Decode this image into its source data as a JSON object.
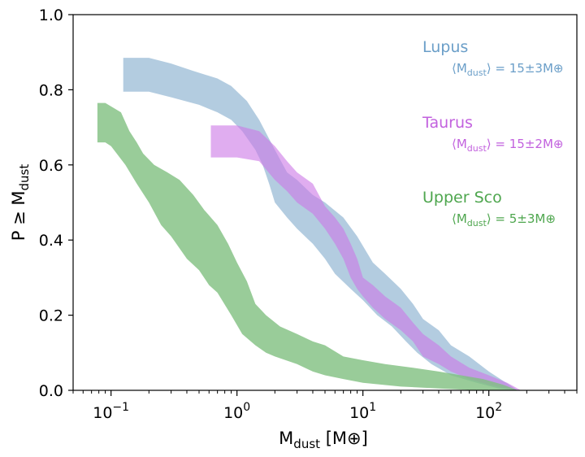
{
  "chart_data": {
    "type": "area",
    "xscale": "log",
    "xlim": [
      0.05,
      500
    ],
    "ylim": [
      0.0,
      1.0
    ],
    "xlabel": {
      "main": "M",
      "sub": "dust",
      "unit": " [M⊕]"
    },
    "ylabel": {
      "main": "P ≥ M",
      "sub": "dust"
    },
    "xticks": [
      {
        "value": 0.1,
        "base": "10",
        "exp": "−1"
      },
      {
        "value": 1,
        "base": "10",
        "exp": "0"
      },
      {
        "value": 10,
        "base": "10",
        "exp": "1"
      },
      {
        "value": 100,
        "base": "10",
        "exp": "2"
      }
    ],
    "yticks": [
      "0.0",
      "0.2",
      "0.4",
      "0.6",
      "0.8",
      "1.0"
    ],
    "grid": false,
    "series": [
      {
        "name": "Lupus",
        "mean_text": "⟨M",
        "mean_sub": "dust",
        "mean_value": "⟩ = 15±3M⊕",
        "color": "#a0bfd8",
        "label_color": "#6a9ec8",
        "upper": [
          [
            0.125,
            0.885
          ],
          [
            0.2,
            0.885
          ],
          [
            0.3,
            0.87
          ],
          [
            0.45,
            0.85
          ],
          [
            0.7,
            0.83
          ],
          [
            0.9,
            0.81
          ],
          [
            1.2,
            0.77
          ],
          [
            1.5,
            0.72
          ],
          [
            2.0,
            0.64
          ],
          [
            2.5,
            0.58
          ],
          [
            3.0,
            0.56
          ],
          [
            4.0,
            0.52
          ],
          [
            5.0,
            0.5
          ],
          [
            7.0,
            0.46
          ],
          [
            9.0,
            0.41
          ],
          [
            12.0,
            0.34
          ],
          [
            15.0,
            0.31
          ],
          [
            20.0,
            0.27
          ],
          [
            25.0,
            0.23
          ],
          [
            30.0,
            0.19
          ],
          [
            40.0,
            0.16
          ],
          [
            50.0,
            0.12
          ],
          [
            70.0,
            0.09
          ],
          [
            100.0,
            0.05
          ],
          [
            130.0,
            0.025
          ],
          [
            170.0,
            0.0
          ]
        ],
        "lower": [
          [
            0.125,
            0.795
          ],
          [
            0.2,
            0.795
          ],
          [
            0.3,
            0.78
          ],
          [
            0.5,
            0.76
          ],
          [
            0.7,
            0.74
          ],
          [
            0.9,
            0.72
          ],
          [
            1.1,
            0.69
          ],
          [
            1.4,
            0.64
          ],
          [
            1.6,
            0.6
          ],
          [
            1.8,
            0.55
          ],
          [
            2.0,
            0.5
          ],
          [
            2.5,
            0.46
          ],
          [
            3.0,
            0.43
          ],
          [
            4.0,
            0.39
          ],
          [
            5.0,
            0.35
          ],
          [
            6.0,
            0.31
          ],
          [
            8.0,
            0.27
          ],
          [
            10.0,
            0.24
          ],
          [
            13.0,
            0.2
          ],
          [
            17.0,
            0.17
          ],
          [
            22.0,
            0.13
          ],
          [
            27.0,
            0.1
          ],
          [
            35.0,
            0.07
          ],
          [
            50.0,
            0.04
          ],
          [
            80.0,
            0.02
          ],
          [
            120.0,
            0.005
          ],
          [
            170.0,
            0.0
          ]
        ]
      },
      {
        "name": "Taurus",
        "mean_text": "⟨M",
        "mean_sub": "dust",
        "mean_value": "⟩ = 15±2M⊕",
        "color": "#cc77e6",
        "label_color": "#c261de",
        "upper": [
          [
            0.62,
            0.705
          ],
          [
            1.0,
            0.705
          ],
          [
            1.5,
            0.69
          ],
          [
            2.0,
            0.65
          ],
          [
            2.5,
            0.61
          ],
          [
            3.0,
            0.58
          ],
          [
            4.0,
            0.55
          ],
          [
            5.0,
            0.49
          ],
          [
            6.0,
            0.46
          ],
          [
            7.0,
            0.43
          ],
          [
            8.0,
            0.39
          ],
          [
            9.0,
            0.35
          ],
          [
            10.0,
            0.3
          ],
          [
            12.0,
            0.28
          ],
          [
            15.0,
            0.25
          ],
          [
            20.0,
            0.22
          ],
          [
            25.0,
            0.18
          ],
          [
            30.0,
            0.15
          ],
          [
            40.0,
            0.12
          ],
          [
            50.0,
            0.09
          ],
          [
            70.0,
            0.06
          ],
          [
            100.0,
            0.04
          ],
          [
            140.0,
            0.02
          ],
          [
            180.0,
            0.0
          ]
        ],
        "lower": [
          [
            0.62,
            0.62
          ],
          [
            1.0,
            0.62
          ],
          [
            1.5,
            0.61
          ],
          [
            2.0,
            0.56
          ],
          [
            2.5,
            0.53
          ],
          [
            3.0,
            0.5
          ],
          [
            4.0,
            0.47
          ],
          [
            5.0,
            0.43
          ],
          [
            6.0,
            0.39
          ],
          [
            7.0,
            0.35
          ],
          [
            8.0,
            0.3
          ],
          [
            9.0,
            0.27
          ],
          [
            10.0,
            0.25
          ],
          [
            12.0,
            0.22
          ],
          [
            15.0,
            0.19
          ],
          [
            20.0,
            0.16
          ],
          [
            25.0,
            0.13
          ],
          [
            30.0,
            0.09
          ],
          [
            40.0,
            0.07
          ],
          [
            50.0,
            0.05
          ],
          [
            70.0,
            0.03
          ],
          [
            100.0,
            0.015
          ],
          [
            140.0,
            0.005
          ],
          [
            180.0,
            0.0
          ]
        ]
      },
      {
        "name": "Upper Sco",
        "mean_text": "⟨M",
        "mean_sub": "dust",
        "mean_value": "⟩ = 5±3M⊕",
        "color": "#7fbf7f",
        "label_color": "#4ea64e",
        "upper": [
          [
            0.078,
            0.765
          ],
          [
            0.09,
            0.765
          ],
          [
            0.12,
            0.74
          ],
          [
            0.14,
            0.69
          ],
          [
            0.16,
            0.66
          ],
          [
            0.18,
            0.63
          ],
          [
            0.22,
            0.6
          ],
          [
            0.28,
            0.58
          ],
          [
            0.35,
            0.56
          ],
          [
            0.45,
            0.52
          ],
          [
            0.55,
            0.48
          ],
          [
            0.7,
            0.44
          ],
          [
            0.85,
            0.39
          ],
          [
            1.0,
            0.34
          ],
          [
            1.2,
            0.29
          ],
          [
            1.4,
            0.23
          ],
          [
            1.7,
            0.2
          ],
          [
            2.2,
            0.17
          ],
          [
            3.0,
            0.15
          ],
          [
            4.0,
            0.13
          ],
          [
            5.0,
            0.12
          ],
          [
            7.0,
            0.09
          ],
          [
            10.0,
            0.08
          ],
          [
            15.0,
            0.07
          ],
          [
            25.0,
            0.06
          ],
          [
            40.0,
            0.05
          ],
          [
            60.0,
            0.04
          ],
          [
            90.0,
            0.03
          ],
          [
            130.0,
            0.015
          ],
          [
            170.0,
            0.0
          ]
        ],
        "lower": [
          [
            0.078,
            0.66
          ],
          [
            0.09,
            0.66
          ],
          [
            0.1,
            0.65
          ],
          [
            0.13,
            0.6
          ],
          [
            0.16,
            0.55
          ],
          [
            0.2,
            0.5
          ],
          [
            0.25,
            0.44
          ],
          [
            0.3,
            0.41
          ],
          [
            0.4,
            0.35
          ],
          [
            0.5,
            0.32
          ],
          [
            0.6,
            0.28
          ],
          [
            0.7,
            0.26
          ],
          [
            0.9,
            0.2
          ],
          [
            1.1,
            0.15
          ],
          [
            1.4,
            0.12
          ],
          [
            1.7,
            0.1
          ],
          [
            2.0,
            0.09
          ],
          [
            3.0,
            0.07
          ],
          [
            4.0,
            0.05
          ],
          [
            5.0,
            0.04
          ],
          [
            7.0,
            0.03
          ],
          [
            10.0,
            0.02
          ],
          [
            20.0,
            0.01
          ],
          [
            40.0,
            0.005
          ],
          [
            80.0,
            0.0
          ],
          [
            170.0,
            0.0
          ]
        ]
      }
    ]
  }
}
